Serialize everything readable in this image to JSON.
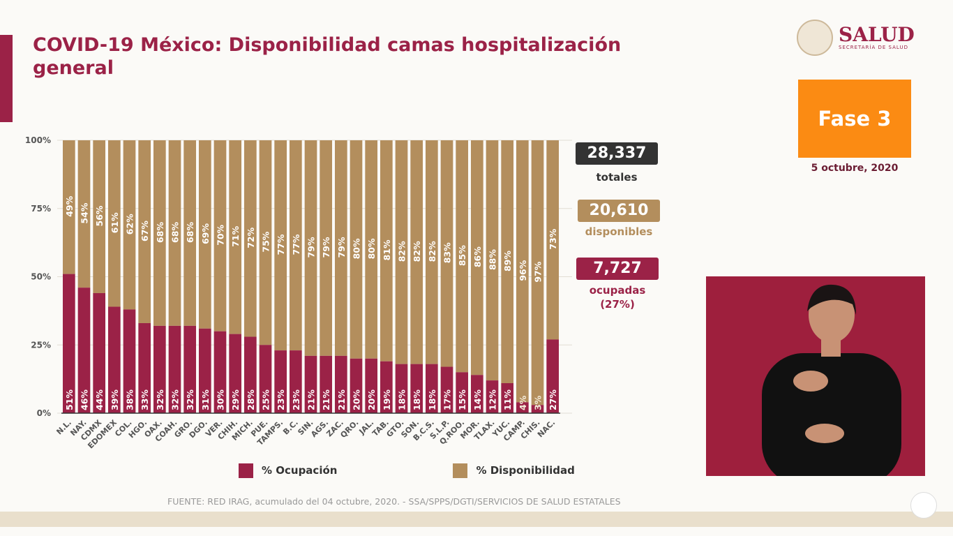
{
  "title": "COVID-19 México: Disponibilidad camas hospitalización general",
  "logo": {
    "name": "SALUD",
    "subtitle": "SECRETARÍA DE SALUD"
  },
  "phase": "Fase 3",
  "date": "5 octubre, 2020",
  "kpis": {
    "total": {
      "value": "28,337",
      "label": "totales",
      "color": "#333333"
    },
    "available": {
      "value": "20,610",
      "label": "disponibles",
      "color": "#b38e5d"
    },
    "occupied": {
      "value": "7,727",
      "label": "ocupadas",
      "pct": "(27%)",
      "color": "#9b2247"
    }
  },
  "source": "FUENTE: RED IRAG, acumulado del 04 octubre, 2020. -  SSA/SPPS/DGTI/SERVICIOS DE SALUD ESTATALES",
  "chart_data": {
    "type": "bar",
    "stacked": true,
    "ylim": [
      0,
      100
    ],
    "yticks": [
      "0%",
      "25%",
      "50%",
      "75%",
      "100%"
    ],
    "grid": true,
    "legend_position": "bottom",
    "categories": [
      "N.L.",
      "NAY.",
      "CDMX",
      "EDOMEX",
      "COL.",
      "HGO.",
      "OAX.",
      "COAH.",
      "GRO.",
      "DGO.",
      "VER.",
      "CHIH.",
      "MICH.",
      "PUE.",
      "TAMPS.",
      "B.C.",
      "SIN.",
      "AGS.",
      "ZAC.",
      "QRO.",
      "JAL.",
      "TAB.",
      "GTO.",
      "SON.",
      "B.C.S.",
      "S.L.P.",
      "Q.ROO.",
      "MOR.",
      "TLAX.",
      "YUC.",
      "CAMP.",
      "CHIS.",
      "NAC."
    ],
    "series": [
      {
        "name": "% Ocupación",
        "color": "#9b2247",
        "values": [
          51,
          46,
          44,
          39,
          38,
          33,
          32,
          32,
          32,
          31,
          30,
          29,
          28,
          25,
          23,
          23,
          21,
          21,
          21,
          20,
          20,
          19,
          18,
          18,
          18,
          17,
          15,
          14,
          12,
          11,
          4,
          3,
          27
        ]
      },
      {
        "name": "% Disponibilidad",
        "color": "#b38e5d",
        "values": [
          49,
          54,
          56,
          61,
          62,
          67,
          68,
          68,
          68,
          69,
          70,
          71,
          72,
          75,
          77,
          77,
          79,
          79,
          79,
          80,
          80,
          81,
          82,
          82,
          82,
          83,
          85,
          86,
          88,
          89,
          96,
          97,
          73
        ]
      }
    ]
  }
}
